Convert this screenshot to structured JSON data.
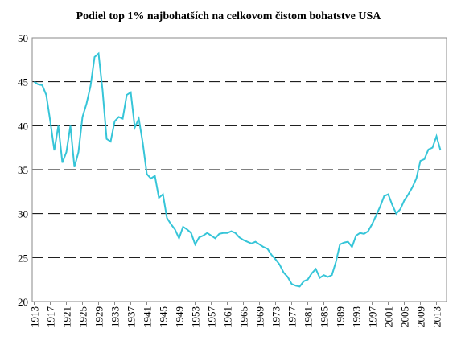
{
  "chart_data": {
    "type": "line",
    "title": "Podiel top 1% najbohatších na celkovom čistom bohatstve USA",
    "x": [
      1913,
      1914,
      1915,
      1916,
      1917,
      1918,
      1919,
      1920,
      1921,
      1922,
      1923,
      1924,
      1925,
      1926,
      1927,
      1928,
      1929,
      1930,
      1931,
      1932,
      1933,
      1934,
      1935,
      1936,
      1937,
      1938,
      1939,
      1940,
      1941,
      1942,
      1943,
      1944,
      1945,
      1946,
      1947,
      1948,
      1949,
      1950,
      1951,
      1952,
      1953,
      1954,
      1955,
      1956,
      1957,
      1958,
      1959,
      1960,
      1961,
      1962,
      1963,
      1964,
      1965,
      1966,
      1967,
      1968,
      1969,
      1970,
      1971,
      1972,
      1973,
      1974,
      1975,
      1976,
      1977,
      1978,
      1979,
      1980,
      1981,
      1982,
      1983,
      1984,
      1985,
      1986,
      1987,
      1988,
      1989,
      1990,
      1991,
      1992,
      1993,
      1994,
      1995,
      1996,
      1997,
      1998,
      1999,
      2000,
      2001,
      2002,
      2003,
      2004,
      2005,
      2006,
      2007,
      2008,
      2009,
      2010,
      2011,
      2012,
      2013,
      2014
    ],
    "series": [
      {
        "color": "#36c5d8",
        "values": [
          45,
          44.7,
          44.6,
          43.5,
          40.5,
          37.2,
          40,
          35.8,
          37,
          40,
          35.3,
          37,
          41,
          42.5,
          44.5,
          47.8,
          48.2,
          44,
          38.5,
          38.2,
          40.5,
          41,
          40.8,
          43.5,
          43.8,
          39.8,
          40.8,
          38,
          34.5,
          34,
          34.3,
          31.8,
          32.2,
          29.5,
          28.8,
          28.2,
          27.2,
          28.5,
          28.2,
          27.8,
          26.5,
          27.3,
          27.5,
          27.8,
          27.5,
          27.2,
          27.7,
          27.8,
          27.8,
          28,
          27.8,
          27.3,
          27,
          26.8,
          26.6,
          26.8,
          26.5,
          26.2,
          26,
          25.3,
          24.8,
          24.2,
          23.3,
          22.8,
          22,
          21.8,
          21.7,
          22.3,
          22.5,
          23.2,
          23.7,
          22.7,
          23,
          22.8,
          23,
          24.5,
          26.5,
          26.7,
          26.8,
          26.2,
          27.5,
          27.8,
          27.7,
          28,
          28.8,
          29.8,
          30.8,
          32,
          32.2,
          31,
          30,
          30.5,
          31.5,
          32.2,
          33,
          34,
          36,
          36.2,
          37.3,
          37.5,
          38.8,
          37.2
        ]
      }
    ],
    "xlim": [
      1912.5,
      2015.5
    ],
    "xticks": [
      1913,
      1917,
      1921,
      1925,
      1929,
      1933,
      1937,
      1941,
      1945,
      1949,
      1953,
      1957,
      1961,
      1965,
      1969,
      1973,
      1977,
      1981,
      1985,
      1989,
      1993,
      1997,
      2001,
      2005,
      2009,
      2013
    ],
    "ylim": [
      20,
      50
    ],
    "yticks": [
      20,
      25,
      30,
      35,
      40,
      45,
      50
    ],
    "grid": true
  }
}
